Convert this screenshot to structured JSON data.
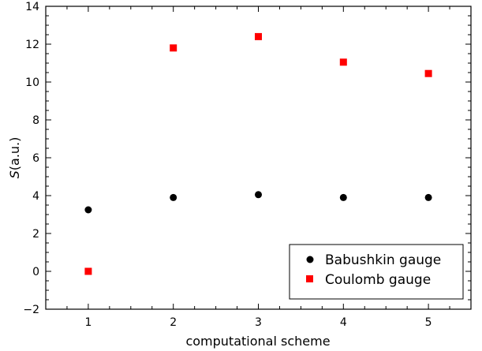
{
  "chart_data": {
    "type": "scatter",
    "xlabel": "computational scheme",
    "ylabel_symbol": "S",
    "ylabel_unit": "(a.u.)",
    "x": [
      1,
      2,
      3,
      4,
      5
    ],
    "xticks": [
      1,
      2,
      3,
      4,
      5
    ],
    "yticks": [
      -2,
      0,
      2,
      4,
      6,
      8,
      10,
      12,
      14
    ],
    "xlim": [
      0.5,
      5.5
    ],
    "ylim": [
      -2,
      14
    ],
    "legend_position": "bottom-right",
    "series": [
      {
        "name": "Babushkin gauge",
        "marker": "circle",
        "color": "#000000",
        "values": [
          3.25,
          3.9,
          4.05,
          3.9,
          3.9
        ]
      },
      {
        "name": "Coulomb gauge",
        "marker": "square",
        "color": "#ff0000",
        "values": [
          0.0,
          11.8,
          12.4,
          11.05,
          10.45
        ]
      }
    ]
  }
}
